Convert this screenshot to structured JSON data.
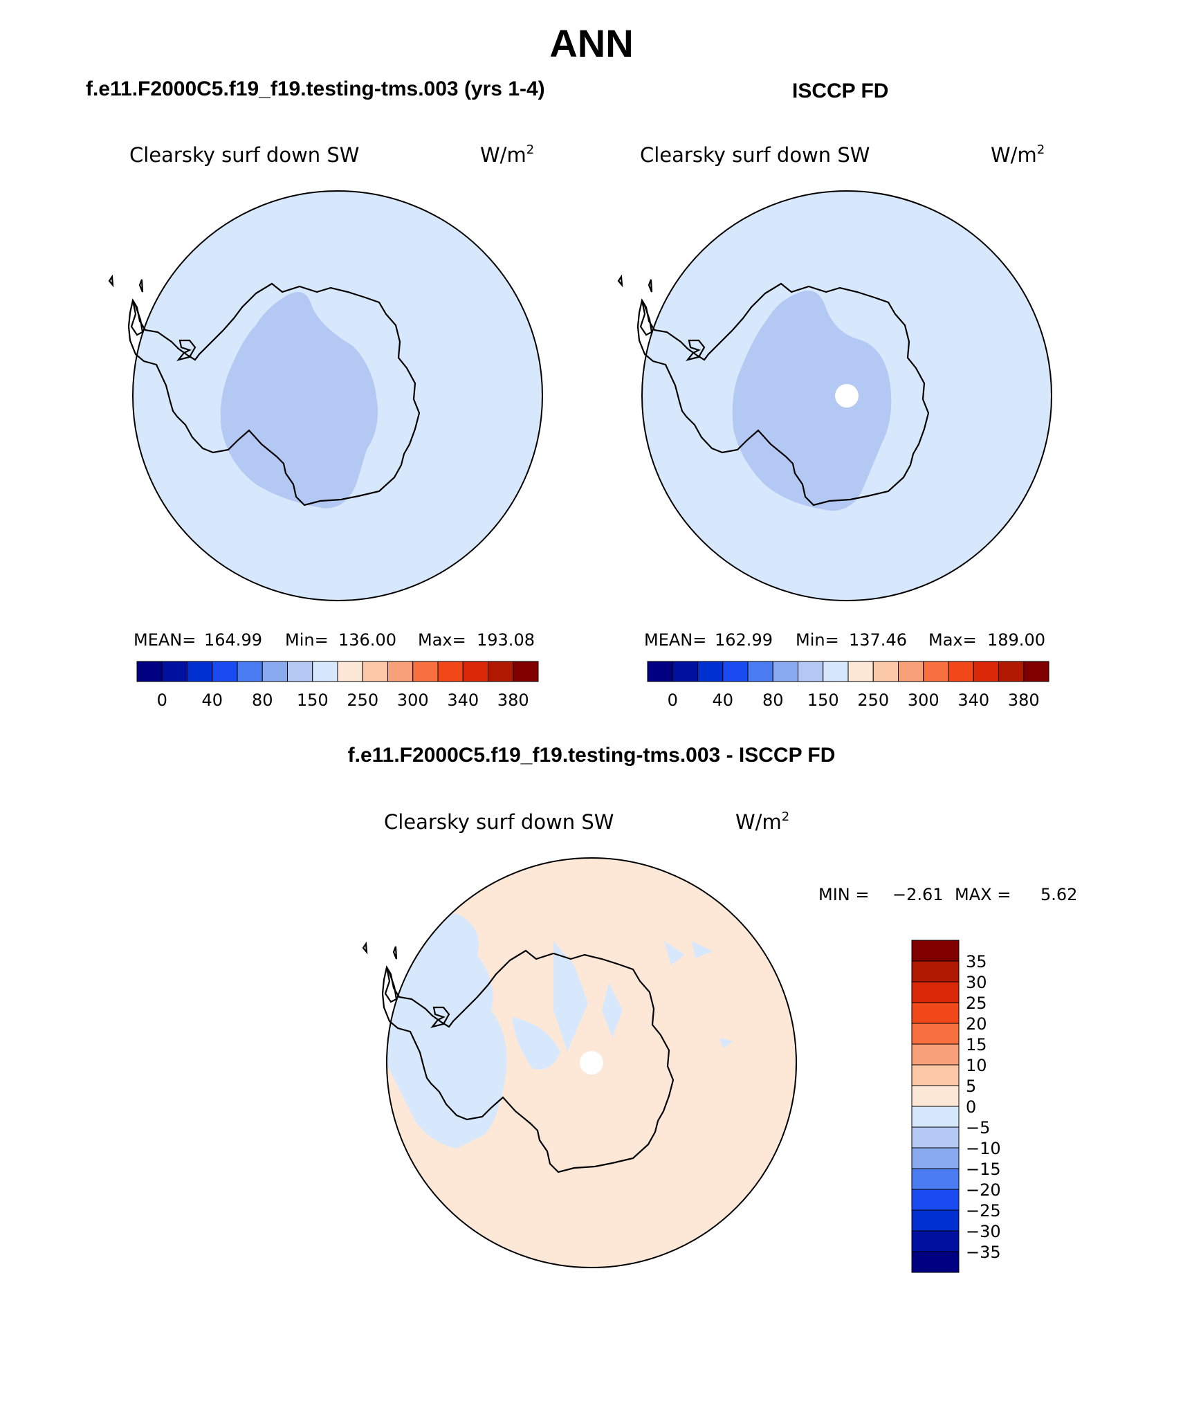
{
  "season": "ANN",
  "panels": [
    {
      "id": "model",
      "case_title": "f.e11.F2000C5.f19_f19.testing-tms.003 (yrs 1-4)",
      "variable": "Clearsky surf down SW",
      "units": "W/m",
      "units_sup": "2",
      "stats": {
        "mean_label": "MEAN=",
        "mean": "164.99",
        "min_label": "Min=",
        "min": "136.00",
        "max_label": "Max=",
        "max": "193.08"
      },
      "pole_hole": false
    },
    {
      "id": "obs",
      "case_title": "ISCCP FD",
      "variable": "Clearsky surf down SW",
      "units": "W/m",
      "units_sup": "2",
      "stats": {
        "mean_label": "MEAN=",
        "mean": "162.99",
        "min_label": "Min=",
        "min": "137.46",
        "max_label": "Max=",
        "max": "189.00"
      },
      "pole_hole": true
    }
  ],
  "top_colorbar": {
    "colors": [
      "#000080",
      "#00109f",
      "#0030d0",
      "#1a4bf0",
      "#4a7bf0",
      "#8aaaf0",
      "#b4c8f4",
      "#d8e8fc",
      "#fde8d8",
      "#fbc8a8",
      "#f8a078",
      "#f87040",
      "#f04818",
      "#d82808",
      "#b01800",
      "#800000"
    ],
    "labels": [
      "0",
      "40",
      "80",
      "150",
      "250",
      "300",
      "340",
      "380"
    ]
  },
  "diff": {
    "title": "f.e11.F2000C5.f19_f19.testing-tms.003 - ISCCP FD",
    "variable": "Clearsky surf down SW",
    "units": "W/m",
    "units_sup": "2",
    "min_label": "MIN =",
    "min": "−2.61",
    "max_label": "MAX =",
    "max": "5.62",
    "colorbar": {
      "colors": [
        "#800000",
        "#b01800",
        "#d82808",
        "#f04818",
        "#f87040",
        "#f8a078",
        "#fbc8a8",
        "#fde8d8",
        "#d8e8fc",
        "#b4c8f4",
        "#8aaaf0",
        "#4a7bf0",
        "#1a4bf0",
        "#0030d0",
        "#00109f",
        "#000080"
      ],
      "labels": [
        "35",
        "30",
        "25",
        "20",
        "15",
        "10",
        "5",
        "0",
        "−5",
        "−10",
        "−15",
        "−20",
        "−25",
        "−30",
        "−35"
      ]
    }
  },
  "colors": {
    "map_background": "#d8e8fc",
    "interior_shade": "#b4c8f4",
    "diff_background": "#fde8d8",
    "coastline": "#000000"
  }
}
